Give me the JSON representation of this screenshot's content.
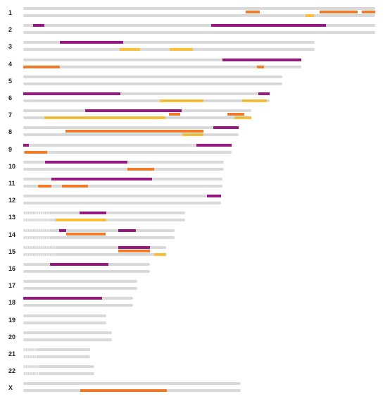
{
  "colors": {
    "track": "#d9d9d9",
    "purple": "#97197f",
    "orange": "#f07a2b",
    "yellow": "#f6be3a",
    "label": "#222222"
  },
  "chromosomes": [
    {
      "label": "1",
      "len": 1.0,
      "pgap": 0,
      "segs": [
        [
          2,
          0.632,
          0.671,
          "orange"
        ],
        [
          2,
          0.842,
          0.95,
          "orange"
        ],
        [
          2,
          0.962,
          1.0,
          "orange"
        ],
        [
          3,
          0.802,
          0.825,
          "yellow"
        ]
      ]
    },
    {
      "label": "2",
      "len": 1.0,
      "pgap": 0,
      "segs": [
        [
          1,
          0.027,
          0.06,
          "purple"
        ],
        [
          1,
          0.534,
          0.86,
          "purple"
        ]
      ]
    },
    {
      "label": "3",
      "len": 0.828,
      "pgap": 0,
      "segs": [
        [
          1,
          0.126,
          0.344,
          "purple"
        ],
        [
          3,
          0.332,
          0.4,
          "yellow"
        ],
        [
          3,
          0.503,
          0.581,
          "yellow"
        ]
      ]
    },
    {
      "label": "4",
      "len": 0.79,
      "pgap": 0,
      "segs": [
        [
          1,
          0.716,
          1.0,
          "purple"
        ],
        [
          3,
          0.0,
          0.131,
          "orange"
        ],
        [
          3,
          0.84,
          0.866,
          "orange"
        ]
      ]
    },
    {
      "label": "5",
      "len": 0.736,
      "pgap": 0,
      "segs": []
    },
    {
      "label": "6",
      "len": 0.7,
      "pgap": 0,
      "segs": [
        [
          1,
          0.0,
          0.395,
          "purple"
        ],
        [
          1,
          0.953,
          1.0,
          "purple"
        ],
        [
          3,
          0.554,
          0.732,
          "yellow"
        ],
        [
          3,
          0.888,
          0.99,
          "yellow"
        ]
      ]
    },
    {
      "label": "7",
      "len": 0.648,
      "pgap": 0,
      "segs": [
        [
          1,
          0.272,
          0.693,
          "purple"
        ],
        [
          2,
          0.64,
          0.687,
          "orange"
        ],
        [
          2,
          0.894,
          0.968,
          "orange"
        ],
        [
          3,
          0.093,
          0.622,
          "yellow"
        ],
        [
          3,
          0.927,
          1.0,
          "yellow"
        ]
      ]
    },
    {
      "label": "8",
      "len": 0.612,
      "pgap": 0,
      "segs": [
        [
          1,
          0.882,
          1.0,
          "purple"
        ],
        [
          2,
          0.196,
          0.838,
          "orange"
        ],
        [
          3,
          0.737,
          0.838,
          "yellow"
        ]
      ]
    },
    {
      "label": "9",
      "len": 0.592,
      "pgap": 0,
      "segs": [
        [
          1,
          0.0,
          0.027,
          "purple"
        ],
        [
          1,
          0.832,
          1.0,
          "purple"
        ],
        [
          3,
          0.007,
          0.114,
          "orange"
        ]
      ]
    },
    {
      "label": "10",
      "len": 0.57,
      "pgap": 0,
      "segs": [
        [
          1,
          0.109,
          0.518,
          "purple"
        ],
        [
          3,
          0.518,
          0.651,
          "orange"
        ]
      ]
    },
    {
      "label": "11",
      "len": 0.566,
      "pgap": 0,
      "segs": [
        [
          1,
          0.141,
          0.645,
          "purple"
        ],
        [
          3,
          0.074,
          0.141,
          "orange"
        ],
        [
          3,
          0.194,
          0.326,
          "orange"
        ]
      ]
    },
    {
      "label": "12",
      "len": 0.562,
      "pgap": 0,
      "segs": [
        [
          1,
          0.928,
          1.0,
          "purple"
        ]
      ]
    },
    {
      "label": "13",
      "len": 0.46,
      "pgap": 0.167,
      "segs": [
        [
          1,
          0.348,
          0.514,
          "purple"
        ],
        [
          3,
          0.199,
          0.514,
          "yellow"
        ]
      ]
    },
    {
      "label": "14",
      "len": 0.43,
      "pgap": 0.18,
      "segs": [
        [
          1,
          0.236,
          0.284,
          "purple"
        ],
        [
          1,
          0.629,
          0.745,
          "purple"
        ],
        [
          2,
          0.284,
          0.542,
          "orange"
        ]
      ]
    },
    {
      "label": "15",
      "len": 0.406,
      "pgap": 0.23,
      "segs": [
        [
          1,
          0.664,
          0.886,
          "purple"
        ],
        [
          2,
          0.664,
          0.886,
          "orange"
        ],
        [
          3,
          0.916,
          0.965,
          "yellow"
        ],
        [
          3,
          0.965,
          1.0,
          "yellow"
        ]
      ]
    },
    {
      "label": "16",
      "len": 0.36,
      "pgap": 0,
      "segs": [
        [
          1,
          0.211,
          0.675,
          "purple"
        ]
      ]
    },
    {
      "label": "17",
      "len": 0.324,
      "pgap": 0,
      "segs": []
    },
    {
      "label": "18",
      "len": 0.312,
      "pgap": 0,
      "segs": [
        [
          1,
          0.0,
          0.717,
          "purple"
        ]
      ]
    },
    {
      "label": "19",
      "len": 0.236,
      "pgap": 0,
      "segs": []
    },
    {
      "label": "20",
      "len": 0.252,
      "pgap": 0,
      "segs": []
    },
    {
      "label": "21",
      "len": 0.19,
      "pgap": 0.21,
      "segs": []
    },
    {
      "label": "22",
      "len": 0.202,
      "pgap": 0.22,
      "segs": []
    },
    {
      "label": "X",
      "len": 0.618,
      "pgap": 0,
      "segs": [
        [
          3,
          0.262,
          0.659,
          "orange"
        ]
      ]
    }
  ]
}
